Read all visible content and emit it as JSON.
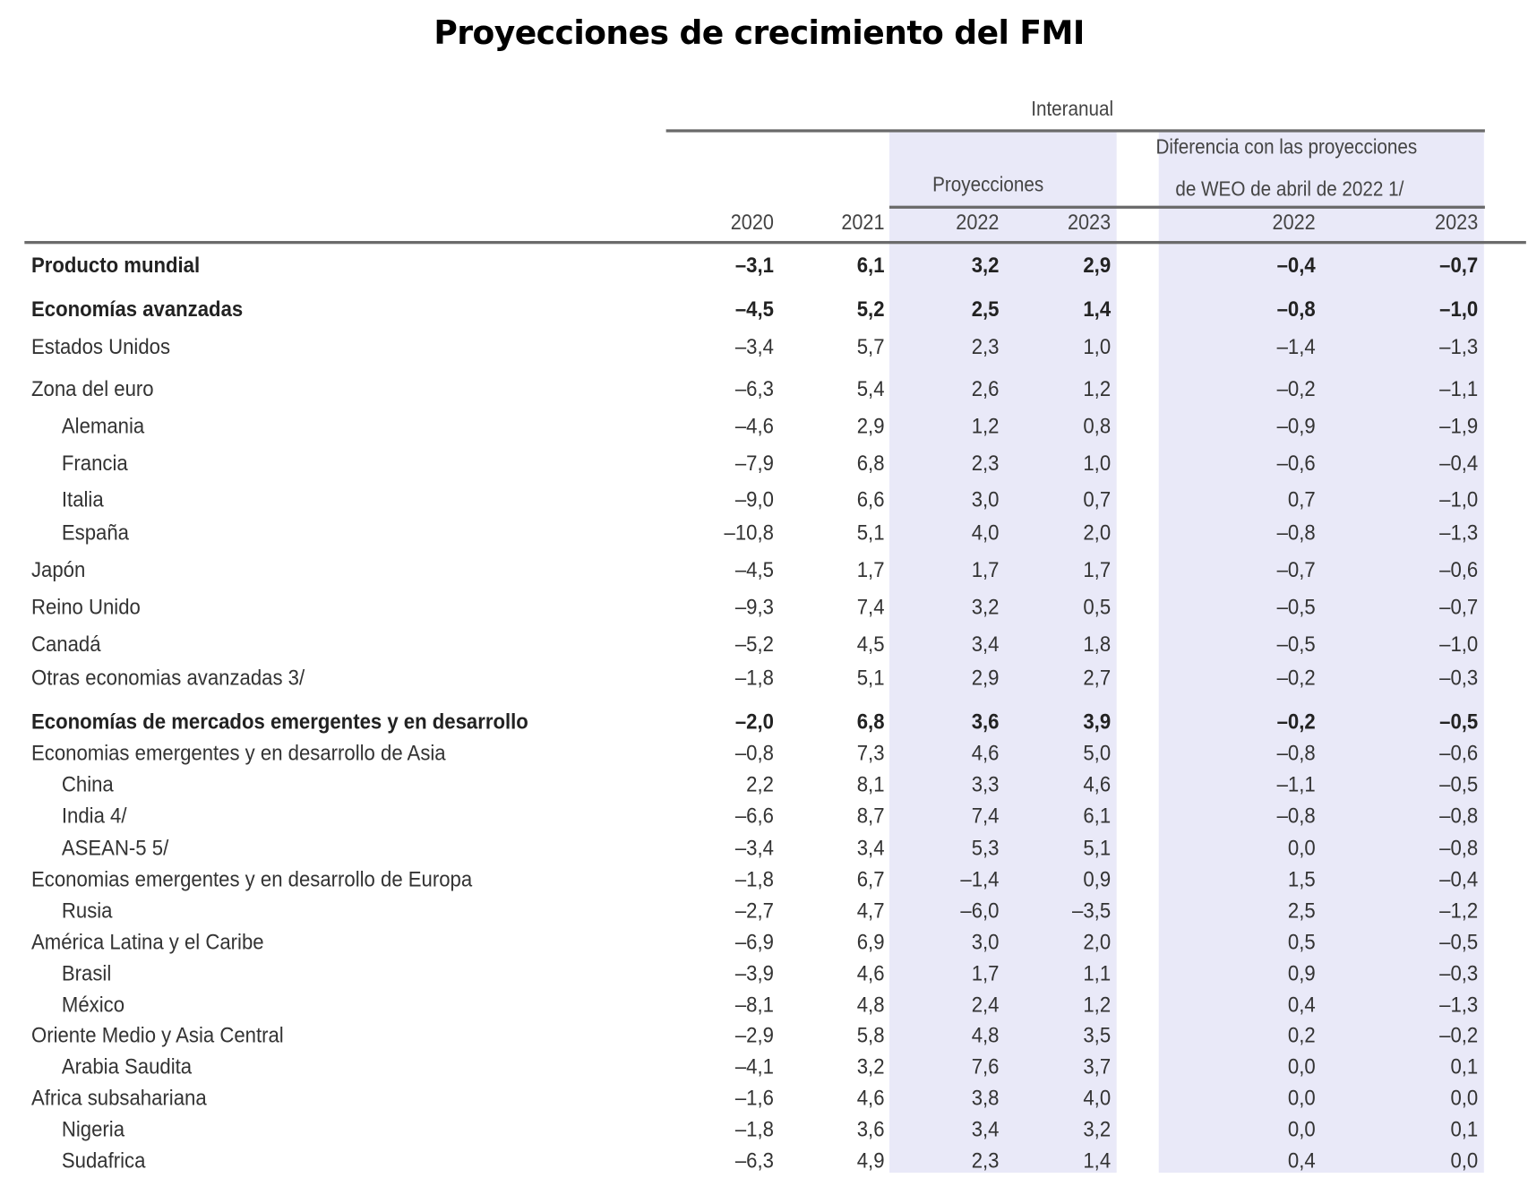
{
  "title": "Proyecciones de crecimiento del FMI",
  "header": {
    "group": "Interanual",
    "projections": "Proyecciones",
    "difference_line1": "Diferencia con las proyecciones",
    "difference_line2": "de WEO de abril de 2022 1/",
    "columns": [
      "2020",
      "2021",
      "2022",
      "2023",
      "2022",
      "2023"
    ]
  },
  "colors": {
    "shade": "#e9e9f8",
    "rule": "#6a6a6a"
  },
  "rows": [
    {
      "label": "Producto mundial",
      "bold": true,
      "indent": false,
      "values": [
        "–3,1",
        "6,1",
        "3,2",
        "2,9",
        "–0,4",
        "–0,7"
      ]
    },
    {
      "label": "Economías avanzadas",
      "bold": true,
      "indent": false,
      "values": [
        "–4,5",
        "5,2",
        "2,5",
        "1,4",
        "–0,8",
        "–1,0"
      ]
    },
    {
      "label": "Estados Unidos",
      "bold": false,
      "indent": false,
      "values": [
        "–3,4",
        "5,7",
        "2,3",
        "1,0",
        "–1,4",
        "–1,3"
      ]
    },
    {
      "label": "Zona del euro",
      "bold": false,
      "indent": false,
      "values": [
        "–6,3",
        "5,4",
        "2,6",
        "1,2",
        "–0,2",
        "–1,1"
      ]
    },
    {
      "label": "Alemania",
      "bold": false,
      "indent": true,
      "values": [
        "–4,6",
        "2,9",
        "1,2",
        "0,8",
        "–0,9",
        "–1,9"
      ]
    },
    {
      "label": "Francia",
      "bold": false,
      "indent": true,
      "values": [
        "–7,9",
        "6,8",
        "2,3",
        "1,0",
        "–0,6",
        "–0,4"
      ]
    },
    {
      "label": "Italia",
      "bold": false,
      "indent": true,
      "values": [
        "–9,0",
        "6,6",
        "3,0",
        "0,7",
        "0,7",
        "–1,0"
      ]
    },
    {
      "label": "España",
      "bold": false,
      "indent": true,
      "values": [
        "–10,8",
        "5,1",
        "4,0",
        "2,0",
        "–0,8",
        "–1,3"
      ]
    },
    {
      "label": "Japón",
      "bold": false,
      "indent": false,
      "values": [
        "–4,5",
        "1,7",
        "1,7",
        "1,7",
        "–0,7",
        "–0,6"
      ]
    },
    {
      "label": "Reino Unido",
      "bold": false,
      "indent": false,
      "values": [
        "–9,3",
        "7,4",
        "3,2",
        "0,5",
        "–0,5",
        "–0,7"
      ]
    },
    {
      "label": "Canadá",
      "bold": false,
      "indent": false,
      "values": [
        "–5,2",
        "4,5",
        "3,4",
        "1,8",
        "–0,5",
        "–1,0"
      ]
    },
    {
      "label": "Otras economias avanzadas 3/",
      "bold": false,
      "indent": false,
      "values": [
        "–1,8",
        "5,1",
        "2,9",
        "2,7",
        "–0,2",
        "–0,3"
      ]
    },
    {
      "label": "Economías de mercados emergentes y en desarrollo",
      "bold": true,
      "indent": false,
      "values": [
        "–2,0",
        "6,8",
        "3,6",
        "3,9",
        "–0,2",
        "–0,5"
      ]
    },
    {
      "label": "Economias emergentes y en desarrollo de Asia",
      "bold": false,
      "indent": false,
      "values": [
        "–0,8",
        "7,3",
        "4,6",
        "5,0",
        "–0,8",
        "–0,6"
      ]
    },
    {
      "label": "China",
      "bold": false,
      "indent": true,
      "values": [
        "2,2",
        "8,1",
        "3,3",
        "4,6",
        "–1,1",
        "–0,5"
      ]
    },
    {
      "label": "India 4/",
      "bold": false,
      "indent": true,
      "values": [
        "–6,6",
        "8,7",
        "7,4",
        "6,1",
        "–0,8",
        "–0,8"
      ]
    },
    {
      "label": "ASEAN-5 5/",
      "bold": false,
      "indent": true,
      "values": [
        "–3,4",
        "3,4",
        "5,3",
        "5,1",
        "0,0",
        "–0,8"
      ]
    },
    {
      "label": "Economias emergentes y en desarrollo de Europa",
      "bold": false,
      "indent": false,
      "values": [
        "–1,8",
        "6,7",
        "–1,4",
        "0,9",
        "1,5",
        "–0,4"
      ]
    },
    {
      "label": "Rusia",
      "bold": false,
      "indent": true,
      "values": [
        "–2,7",
        "4,7",
        "–6,0",
        "–3,5",
        "2,5",
        "–1,2"
      ]
    },
    {
      "label": "América Latina y el Caribe",
      "bold": false,
      "indent": false,
      "values": [
        "–6,9",
        "6,9",
        "3,0",
        "2,0",
        "0,5",
        "–0,5"
      ]
    },
    {
      "label": "Brasil",
      "bold": false,
      "indent": true,
      "values": [
        "–3,9",
        "4,6",
        "1,7",
        "1,1",
        "0,9",
        "–0,3"
      ]
    },
    {
      "label": "México",
      "bold": false,
      "indent": true,
      "values": [
        "–8,1",
        "4,8",
        "2,4",
        "1,2",
        "0,4",
        "–1,3"
      ]
    },
    {
      "label": "Oriente Medio y Asia Central",
      "bold": false,
      "indent": false,
      "values": [
        "–2,9",
        "5,8",
        "4,8",
        "3,5",
        "0,2",
        "–0,2"
      ]
    },
    {
      "label": "Arabia Saudita",
      "bold": false,
      "indent": true,
      "values": [
        "–4,1",
        "3,2",
        "7,6",
        "3,7",
        "0,0",
        "0,1"
      ]
    },
    {
      "label": "Africa subsahariana",
      "bold": false,
      "indent": false,
      "values": [
        "–1,6",
        "4,6",
        "3,8",
        "4,0",
        "0,0",
        "0,0"
      ]
    },
    {
      "label": "Nigeria",
      "bold": false,
      "indent": true,
      "values": [
        "–1,8",
        "3,6",
        "3,4",
        "3,2",
        "0,0",
        "0,1"
      ]
    },
    {
      "label": "Sudafrica",
      "bold": false,
      "indent": true,
      "values": [
        "–6,3",
        "4,9",
        "2,3",
        "1,4",
        "0,4",
        "0,0"
      ]
    }
  ]
}
